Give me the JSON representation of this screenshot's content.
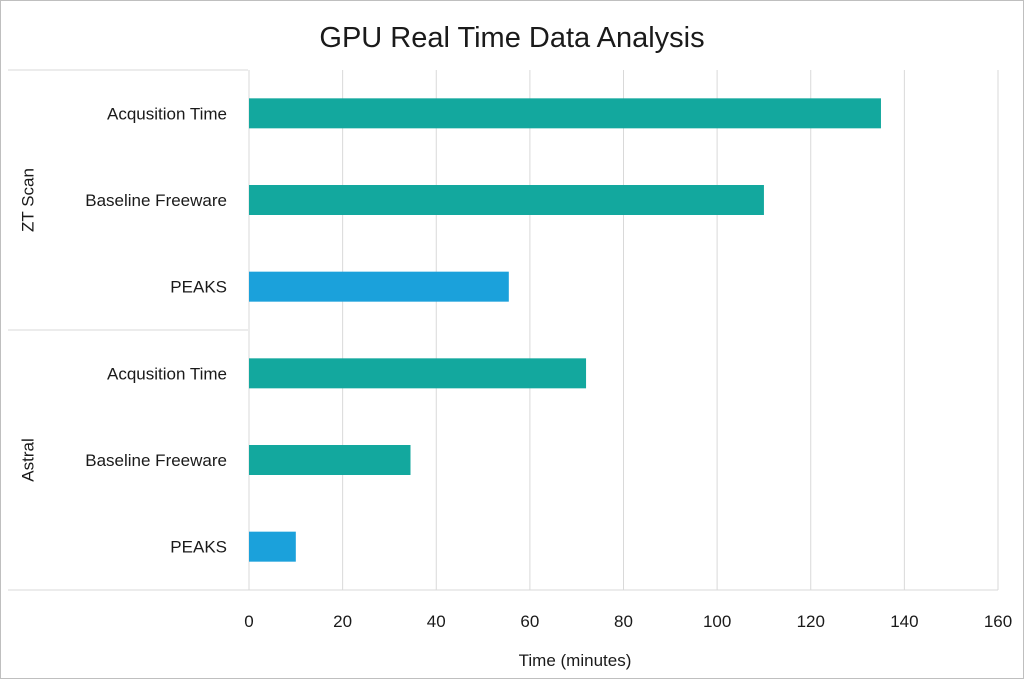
{
  "chart_data": {
    "type": "bar",
    "orientation": "horizontal",
    "title": "GPU Real Time Data Analysis",
    "xlabel": "Time (minutes)",
    "ylabel": "",
    "xlim": [
      0,
      160
    ],
    "xticks": [
      0,
      20,
      40,
      60,
      80,
      100,
      120,
      140,
      160
    ],
    "grid": true,
    "legend": "none",
    "groups": [
      {
        "name": "ZT Scan",
        "items": [
          {
            "label": "Acqusition Time",
            "value": 135,
            "color": "#13A89E"
          },
          {
            "label": "Baseline Freeware",
            "value": 110,
            "color": "#13A89E"
          },
          {
            "label": "PEAKS",
            "value": 55.5,
            "color": "#1BA1DB"
          }
        ]
      },
      {
        "name": "Astral",
        "items": [
          {
            "label": "Acqusition Time",
            "value": 72,
            "color": "#13A89E"
          },
          {
            "label": "Baseline Freeware",
            "value": 34.5,
            "color": "#13A89E"
          },
          {
            "label": "PEAKS",
            "value": 10,
            "color": "#1BA1DB"
          }
        ]
      }
    ]
  }
}
